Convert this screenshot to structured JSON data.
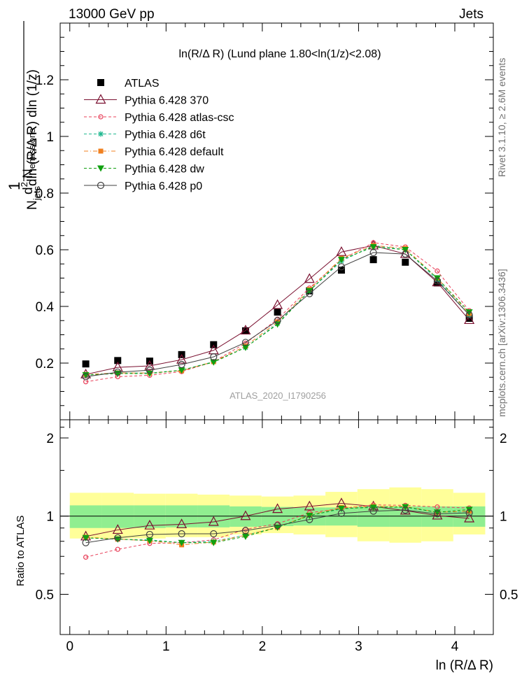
{
  "header": {
    "left": "13000 GeV pp",
    "right": "Jets",
    "side_top": "Rivet 3.1.10, ≥ 2.6M events",
    "side_bottom": "mcplots.cern.ch [arXiv:1306.3436]"
  },
  "colors": {
    "ATLAS": "#000000",
    "Pythia 6.428 370": "#7a1030",
    "Pythia 6.428 atlas-csc": "#e8405a",
    "Pythia 6.428 d6t": "#20b890",
    "Pythia 6.428 default": "#f08020",
    "Pythia 6.428 dw": "#10a010",
    "Pythia 6.428 p0": "#404040",
    "band_inner": "#90ee90",
    "band_outer": "#ffff99"
  },
  "chart_data": [
    {
      "type": "line",
      "title": "ln(R/Δ R) (Lund plane 1.80<ln(1/z)<2.08)",
      "watermark": "ATLAS_2020_I1790256",
      "xlabel": "ln (R/Δ R)",
      "ylabel": "1/N_jets dln (R/Δ R) · d² N_emissions / dln (1/z) (1/z)",
      "xlim": [
        -0.1,
        4.4
      ],
      "ylim": [
        0,
        1.4
      ],
      "x_ticks": [
        0,
        1,
        2,
        3,
        4
      ],
      "y_ticks": [
        0.2,
        0.4,
        0.6,
        0.8,
        1,
        1.2
      ],
      "y_tick_labels": [
        "0.2",
        "0.4",
        "0.6",
        "0.8",
        "1",
        "1.2"
      ],
      "x": [
        0.166,
        0.498,
        0.83,
        1.162,
        1.494,
        1.826,
        2.158,
        2.49,
        2.822,
        3.154,
        3.486,
        3.818,
        4.15
      ],
      "series": [
        {
          "name": "ATLAS",
          "marker": "square",
          "values": [
            0.197,
            0.209,
            0.207,
            0.23,
            0.265,
            0.314,
            0.38,
            0.455,
            0.528,
            0.565,
            0.556,
            0.483,
            0.358
          ]
        },
        {
          "name": "Pythia 6.428 370",
          "marker": "triangle-open",
          "dash": "solid",
          "values": [
            0.16,
            0.185,
            0.19,
            0.212,
            0.245,
            0.315,
            0.405,
            0.497,
            0.592,
            0.615,
            0.585,
            0.485,
            0.352
          ]
        },
        {
          "name": "Pythia 6.428 atlas-csc",
          "marker": "circle-open-small",
          "dash": "dashed",
          "values": [
            0.134,
            0.152,
            0.157,
            0.17,
            0.205,
            0.27,
            0.355,
            0.465,
            0.565,
            0.625,
            0.61,
            0.525,
            0.385
          ]
        },
        {
          "name": "Pythia 6.428 d6t",
          "marker": "star",
          "dash": "dashed",
          "values": [
            0.158,
            0.165,
            0.165,
            0.175,
            0.205,
            0.255,
            0.34,
            0.455,
            0.56,
            0.615,
            0.6,
            0.495,
            0.37
          ]
        },
        {
          "name": "Pythia 6.428 default",
          "marker": "square-small",
          "dash": "dashdot",
          "values": [
            0.16,
            0.165,
            0.165,
            0.173,
            0.205,
            0.26,
            0.345,
            0.46,
            0.57,
            0.615,
            0.605,
            0.5,
            0.375
          ]
        },
        {
          "name": "Pythia 6.428 dw",
          "marker": "triangle-down",
          "dash": "dashed",
          "values": [
            0.158,
            0.163,
            0.163,
            0.175,
            0.203,
            0.255,
            0.337,
            0.455,
            0.565,
            0.61,
            0.6,
            0.5,
            0.38
          ]
        },
        {
          "name": "Pythia 6.428 p0",
          "marker": "circle-open",
          "dash": "solid",
          "values": [
            0.152,
            0.168,
            0.175,
            0.195,
            0.222,
            0.273,
            0.35,
            0.445,
            0.54,
            0.59,
            0.585,
            0.49,
            0.37
          ]
        }
      ],
      "legend": "top-left"
    },
    {
      "type": "line",
      "xlabel": "ln (R/Δ R)",
      "ylabel": "Ratio to ATLAS",
      "xlim": [
        -0.1,
        4.4
      ],
      "ylim": [
        0.35,
        2.35
      ],
      "x_ticks": [
        0,
        1,
        2,
        3,
        4
      ],
      "x_tick_labels": [
        "0",
        "1",
        "2",
        "3",
        "4"
      ],
      "y_ticks": [
        0.5,
        1,
        2
      ],
      "y_tick_labels": [
        "0.5",
        "1",
        "2"
      ],
      "x_bin_edges": [
        0,
        0.332,
        0.664,
        0.996,
        1.328,
        1.66,
        1.992,
        2.324,
        2.656,
        2.988,
        3.32,
        3.652,
        3.984,
        4.316
      ],
      "band_inner": [
        [
          0.9,
          1.1
        ],
        [
          0.9,
          1.1
        ],
        [
          0.9,
          1.1
        ],
        [
          0.905,
          1.1
        ],
        [
          0.905,
          1.1
        ],
        [
          0.91,
          1.09
        ],
        [
          0.915,
          1.085
        ],
        [
          0.92,
          1.08
        ],
        [
          0.92,
          1.08
        ],
        [
          0.91,
          1.09
        ],
        [
          0.91,
          1.09
        ],
        [
          0.91,
          1.09
        ],
        [
          0.91,
          1.09
        ]
      ],
      "band_outer": [
        [
          0.82,
          1.23
        ],
        [
          0.82,
          1.23
        ],
        [
          0.82,
          1.22
        ],
        [
          0.83,
          1.22
        ],
        [
          0.83,
          1.21
        ],
        [
          0.85,
          1.2
        ],
        [
          0.86,
          1.19
        ],
        [
          0.85,
          1.2
        ],
        [
          0.83,
          1.24
        ],
        [
          0.8,
          1.27
        ],
        [
          0.79,
          1.29
        ],
        [
          0.8,
          1.27
        ],
        [
          0.85,
          1.23
        ]
      ],
      "series": [
        {
          "name": "Pythia 6.428 370",
          "values": [
            0.835,
            0.885,
            0.92,
            0.93,
            0.95,
            1.0,
            1.065,
            1.09,
            1.12,
            1.09,
            1.05,
            1.005,
            0.98
          ]
        },
        {
          "name": "Pythia 6.428 atlas-csc",
          "values": [
            0.695,
            0.745,
            0.785,
            0.79,
            0.81,
            0.89,
            0.935,
            1.03,
            1.07,
            1.105,
            1.1,
            1.085,
            1.075
          ]
        },
        {
          "name": "Pythia 6.428 d6t",
          "values": [
            0.825,
            0.815,
            0.81,
            0.79,
            0.8,
            0.845,
            0.905,
            1.005,
            1.065,
            1.09,
            1.08,
            1.035,
            1.04
          ]
        },
        {
          "name": "Pythia 6.428 default",
          "values": [
            0.83,
            0.815,
            0.805,
            0.775,
            0.795,
            0.845,
            0.905,
            1.01,
            1.08,
            1.09,
            1.09,
            1.035,
            1.045
          ]
        },
        {
          "name": "Pythia 6.428 dw",
          "values": [
            0.825,
            0.815,
            0.805,
            0.79,
            0.79,
            0.835,
            0.905,
            1.005,
            1.07,
            1.08,
            1.085,
            1.035,
            1.06
          ]
        },
        {
          "name": "Pythia 6.428 p0",
          "values": [
            0.79,
            0.825,
            0.85,
            0.855,
            0.855,
            0.88,
            0.92,
            0.97,
            1.025,
            1.045,
            1.055,
            1.02,
            1.03
          ]
        }
      ]
    }
  ]
}
